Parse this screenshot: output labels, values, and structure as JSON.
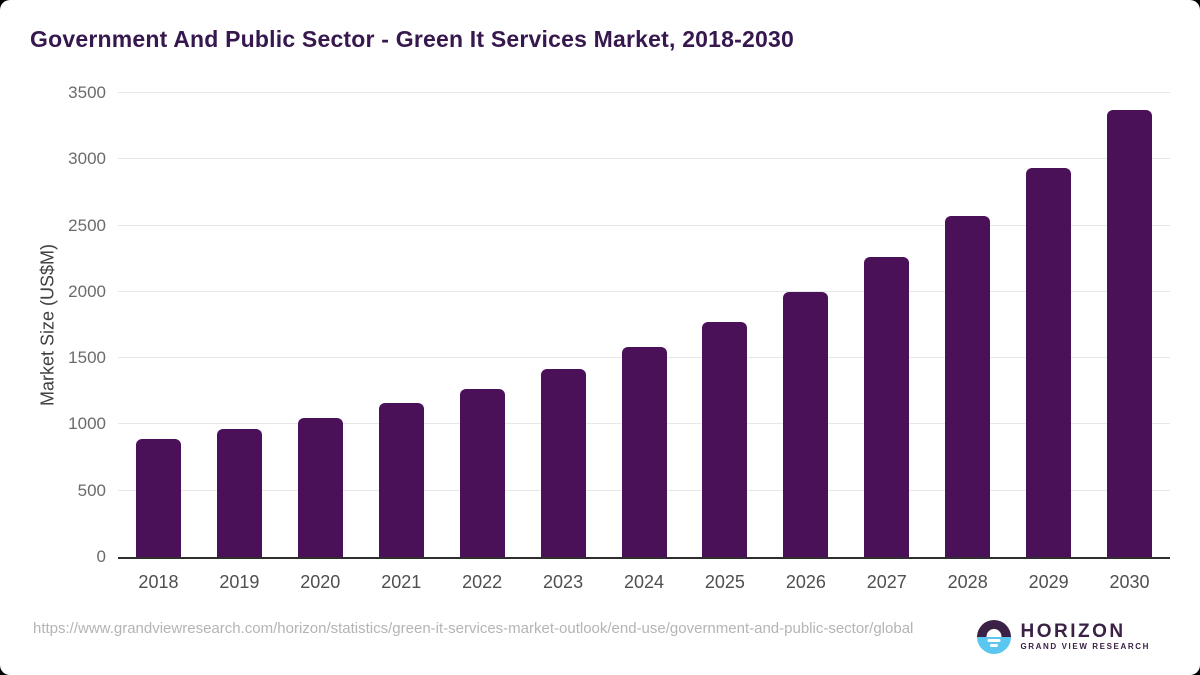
{
  "page": {
    "background_color": "#000000",
    "card_color": "#ffffff"
  },
  "chart_data": {
    "type": "bar",
    "title": "Government And Public Sector - Green It Services Market, 2018-2030",
    "title_color": "#36184e",
    "xlabel": "",
    "ylabel": "Market Size (US$M)",
    "categories": [
      "2018",
      "2019",
      "2020",
      "2021",
      "2022",
      "2023",
      "2024",
      "2025",
      "2026",
      "2027",
      "2028",
      "2029",
      "2030"
    ],
    "values": [
      890,
      965,
      1050,
      1160,
      1270,
      1420,
      1585,
      1770,
      2000,
      2260,
      2575,
      2935,
      3370
    ],
    "ylim": [
      0,
      3500
    ],
    "yticks": [
      0,
      500,
      1000,
      1500,
      2000,
      2500,
      3000,
      3500
    ],
    "grid": true,
    "legend": false,
    "bar_color": "#4a1159",
    "gridline_color": "#e7e7e7",
    "axis_line_color": "#2e2e2e",
    "xtick_label_color": "#4f4f4f",
    "ytick_label_color": "#6b6b6b"
  },
  "footer": {
    "source_url": "https://www.grandviewresearch.com/horizon/statistics/green-it-services-market-outlook/end-use/government-and-public-sector/global",
    "logo": {
      "brand": "HORIZON",
      "subtitle": "GRAND VIEW RESEARCH",
      "purple": "#3a2145",
      "blue": "#5bc7f0"
    }
  }
}
